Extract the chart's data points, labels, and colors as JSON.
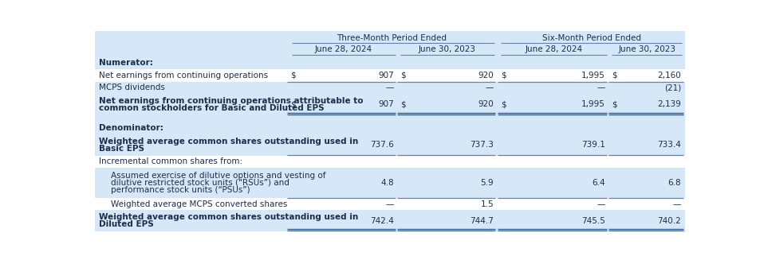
{
  "col_header1_labels": [
    "Three-Month Period Ended",
    "Six-Month Period Ended"
  ],
  "col_header2_labels": [
    "June 28, 2024",
    "June 30, 2023",
    "June 28, 2024",
    "June 30, 2023"
  ],
  "rows": [
    {
      "label": "Numerator:",
      "vals": [
        "",
        "",
        "",
        ""
      ],
      "dollar": [
        false,
        false,
        false,
        false
      ],
      "style": "section",
      "n_lines": 1
    },
    {
      "label": "Net earnings from continuing operations",
      "vals": [
        "907",
        "920",
        "1,995",
        "2,160"
      ],
      "dollar": [
        true,
        true,
        true,
        true
      ],
      "style": "normal",
      "n_lines": 1
    },
    {
      "label": "MCPS dividends",
      "vals": [
        "—",
        "—",
        "—",
        "(21)"
      ],
      "dollar": [
        false,
        false,
        false,
        false
      ],
      "style": "normal_top_line",
      "n_lines": 1
    },
    {
      "label": "Net earnings from continuing operations attributable to\ncommon stockholders for Basic and Diluted EPS",
      "vals": [
        "907",
        "920",
        "1,995",
        "2,139"
      ],
      "dollar": [
        true,
        true,
        true,
        true
      ],
      "style": "double_bottom",
      "n_lines": 2
    },
    {
      "label": "",
      "vals": [
        "",
        "",
        "",
        ""
      ],
      "dollar": [
        false,
        false,
        false,
        false
      ],
      "style": "spacer",
      "n_lines": 1
    },
    {
      "label": "Denominator:",
      "vals": [
        "",
        "",
        "",
        ""
      ],
      "dollar": [
        false,
        false,
        false,
        false
      ],
      "style": "section",
      "n_lines": 1
    },
    {
      "label": "Weighted average common shares outstanding used in\nBasic EPS",
      "vals": [
        "737.6",
        "737.3",
        "739.1",
        "733.4"
      ],
      "dollar": [
        false,
        false,
        false,
        false
      ],
      "style": "single_bottom",
      "n_lines": 2
    },
    {
      "label": "Incremental common shares from:",
      "vals": [
        "",
        "",
        "",
        ""
      ],
      "dollar": [
        false,
        false,
        false,
        false
      ],
      "style": "normal",
      "n_lines": 1
    },
    {
      "label": "Assumed exercise of dilutive options and vesting of\ndilutive restricted stock units (“RSUs”) and\nperformance stock units (“PSUs”)",
      "vals": [
        "4.8",
        "5.9",
        "6.4",
        "6.8"
      ],
      "dollar": [
        false,
        false,
        false,
        false
      ],
      "style": "normal",
      "n_lines": 3,
      "indent": true
    },
    {
      "label": "Weighted average MCPS converted shares",
      "vals": [
        "—",
        "1.5",
        "—",
        "—"
      ],
      "dollar": [
        false,
        false,
        false,
        false
      ],
      "style": "normal_top_line",
      "n_lines": 1,
      "indent": true
    },
    {
      "label": "Weighted average common shares outstanding used in\nDiluted EPS",
      "vals": [
        "742.4",
        "744.7",
        "745.5",
        "740.2"
      ],
      "dollar": [
        false,
        false,
        false,
        false
      ],
      "style": "double_bottom",
      "n_lines": 2
    }
  ],
  "bg_colors": [
    "#d6e8f7",
    "#ffffff",
    "#d6e8f7",
    "#d6e8f7",
    "#d6e8f7",
    "#d6e8f7",
    "#d6e8f7",
    "#ffffff",
    "#d6e8f7",
    "#ffffff",
    "#d6e8f7"
  ],
  "bg_header": "#d6e8f7",
  "bg_white": "#ffffff",
  "text_dark": "#1c2d4a",
  "line_color": "#5c85b0",
  "dbl_line_color": "#3a5f8a"
}
